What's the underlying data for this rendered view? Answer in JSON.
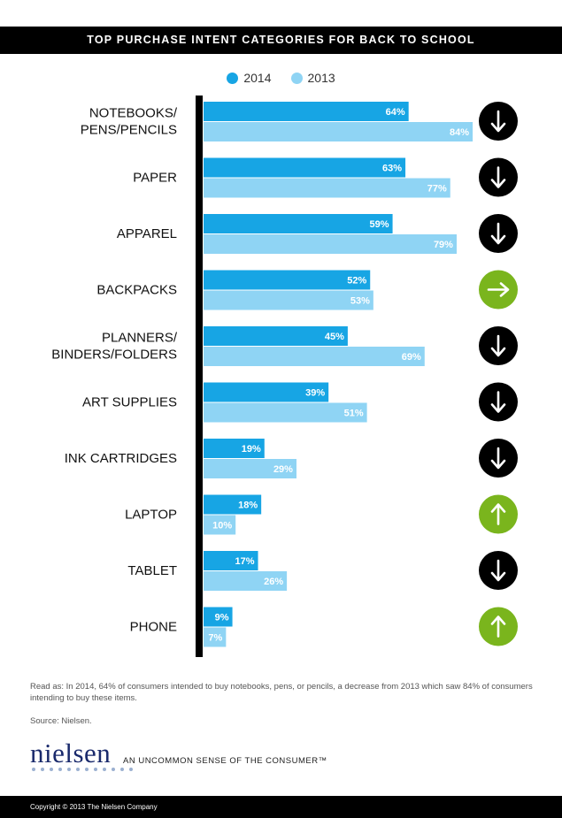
{
  "title": "TOP PURCHASE INTENT CATEGORIES FOR BACK TO SCHOOL",
  "colors": {
    "series_2014": "#17a5e4",
    "series_2013": "#8fd4f4",
    "arrow_down": "#000000",
    "arrow_right": "#7ab51d",
    "arrow_up": "#7ab51d"
  },
  "chart_data": {
    "type": "bar",
    "orientation": "horizontal",
    "xlim": [
      0,
      100
    ],
    "categories": [
      [
        "NOTEBOOKS/",
        "PENS/PENCILS"
      ],
      [
        "PAPER"
      ],
      [
        "APPAREL"
      ],
      [
        "BACKPACKS"
      ],
      [
        "PLANNERS/",
        "BINDERS/FOLDERS"
      ],
      [
        "ART SUPPLIES"
      ],
      [
        "INK CARTRIDGES"
      ],
      [
        "LAPTOP"
      ],
      [
        "TABLET"
      ],
      [
        "PHONE"
      ]
    ],
    "series": [
      {
        "name": "2014",
        "values": [
          64,
          63,
          59,
          52,
          45,
          39,
          19,
          18,
          17,
          9
        ]
      },
      {
        "name": "2013",
        "values": [
          84,
          77,
          79,
          53,
          69,
          51,
          29,
          10,
          26,
          7
        ]
      }
    ],
    "data_labels": {
      "2014": [
        "64%",
        "63%",
        "59%",
        "52%",
        "45%",
        "39%",
        "19%",
        "18%",
        "17%",
        "9%"
      ],
      "2013": [
        "84%",
        "77%",
        "79%",
        "53%",
        "69%",
        "51%",
        "29%",
        "10%",
        "26%",
        "7%"
      ]
    },
    "trend_icons": [
      "arrow-down",
      "arrow-down",
      "arrow-down",
      "arrow-right",
      "arrow-down",
      "arrow-down",
      "arrow-down",
      "arrow-up",
      "arrow-down",
      "arrow-up"
    ],
    "legend_placement": "top-center"
  },
  "footnote": "Read as: In 2014, 64% of consumers intended to buy notebooks, pens, or pencils, a decrease from 2013 which saw 84% of consumers intending to buy these items.",
  "source": "Source: Nielsen.",
  "brand": {
    "name": "nielsen",
    "tagline": "AN UNCOMMON SENSE OF THE CONSUMER™"
  },
  "copyright": "Copyright © 2013 The Nielsen Company"
}
